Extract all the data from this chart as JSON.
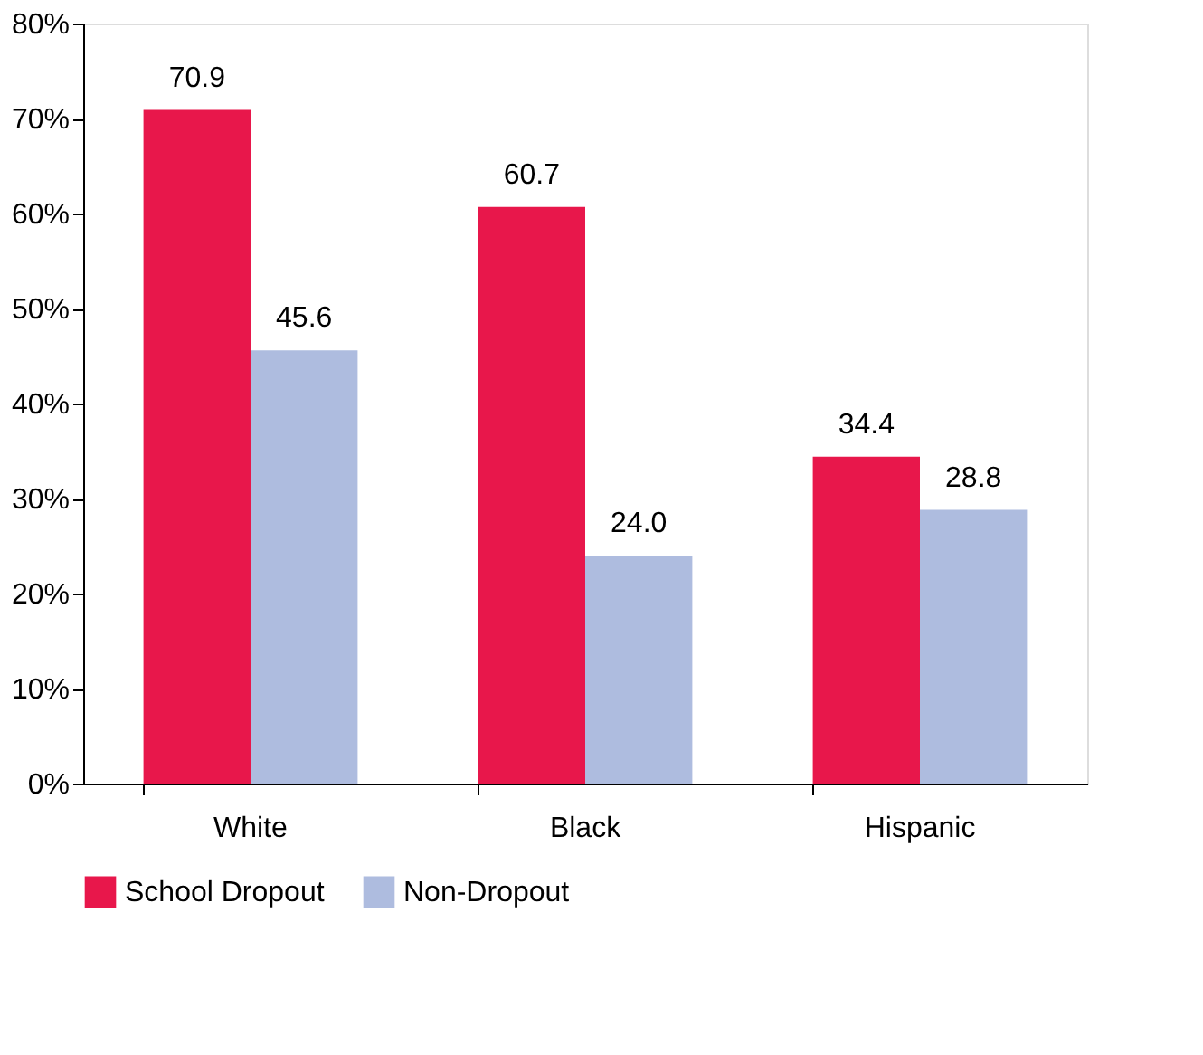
{
  "chart_data": {
    "type": "bar",
    "categories": [
      "White",
      "Black",
      "Hispanic"
    ],
    "series": [
      {
        "name": "School Dropout",
        "color": "#e8174b",
        "values": [
          70.9,
          60.7,
          34.4
        ],
        "value_labels": [
          "70.9",
          "60.7",
          "34.4"
        ]
      },
      {
        "name": "Non-Dropout",
        "color": "#aebcdf",
        "values": [
          45.6,
          24.0,
          28.8
        ],
        "value_labels": [
          "45.6",
          "24.0",
          "28.8"
        ]
      }
    ],
    "ylim": [
      0,
      80
    ],
    "yticks": [
      {
        "value": 0,
        "label": "0%"
      },
      {
        "value": 10,
        "label": "10%"
      },
      {
        "value": 20,
        "label": "20%"
      },
      {
        "value": 30,
        "label": "30%"
      },
      {
        "value": 40,
        "label": "40%"
      },
      {
        "value": 50,
        "label": "50%"
      },
      {
        "value": 60,
        "label": "60%"
      },
      {
        "value": 70,
        "label": "70%"
      },
      {
        "value": 80,
        "label": "80%"
      }
    ],
    "grid": false,
    "legend": "bottom"
  }
}
